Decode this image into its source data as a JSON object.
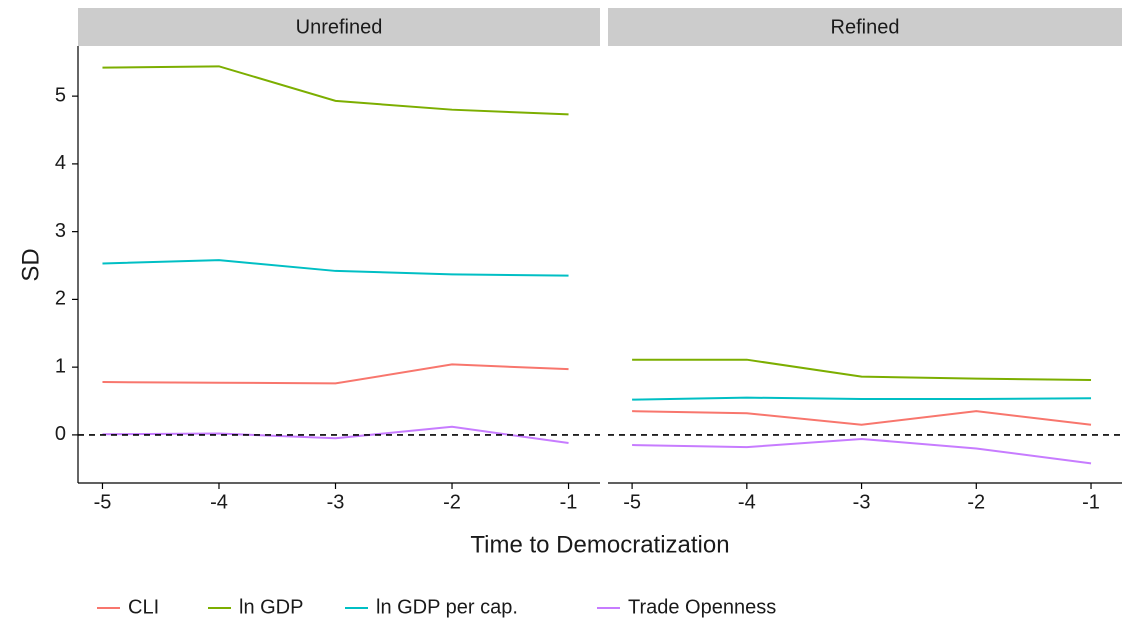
{
  "chart_data": {
    "type": "line",
    "x_label": "Time to Democratization",
    "y_label": "SD",
    "x": [
      -5,
      -4,
      -3,
      -2,
      -1
    ],
    "xlim": [
      -5.21,
      -0.73
    ],
    "xticks": [
      -5,
      -4,
      -3,
      -2,
      -1
    ],
    "ylim": [
      -0.71,
      5.74
    ],
    "yticks": [
      0,
      1,
      2,
      3,
      4,
      5
    ],
    "hline": 0,
    "series": [
      {
        "name": "CLI",
        "color": "#F8766D"
      },
      {
        "name": "ln GDP",
        "color": "#7CAE00"
      },
      {
        "name": "ln GDP per cap.",
        "color": "#00BFC4"
      },
      {
        "name": "Trade Openness",
        "color": "#C77CFF"
      }
    ],
    "facets": [
      {
        "title": "Unrefined",
        "series": [
          {
            "values": [
              0.78,
              0.77,
              0.76,
              1.04,
              0.97
            ]
          },
          {
            "values": [
              5.42,
              5.44,
              4.93,
              4.8,
              4.73
            ]
          },
          {
            "values": [
              2.53,
              2.58,
              2.42,
              2.37,
              2.35
            ]
          },
          {
            "values": [
              0.01,
              0.02,
              -0.05,
              0.12,
              -0.12
            ]
          }
        ]
      },
      {
        "title": "Refined",
        "series": [
          {
            "values": [
              0.35,
              0.32,
              0.15,
              0.35,
              0.15
            ]
          },
          {
            "values": [
              1.11,
              1.11,
              0.86,
              0.83,
              0.81
            ]
          },
          {
            "values": [
              0.52,
              0.55,
              0.53,
              0.53,
              0.54
            ]
          },
          {
            "values": [
              -0.15,
              -0.18,
              -0.06,
              -0.2,
              -0.42
            ]
          }
        ]
      }
    ]
  }
}
